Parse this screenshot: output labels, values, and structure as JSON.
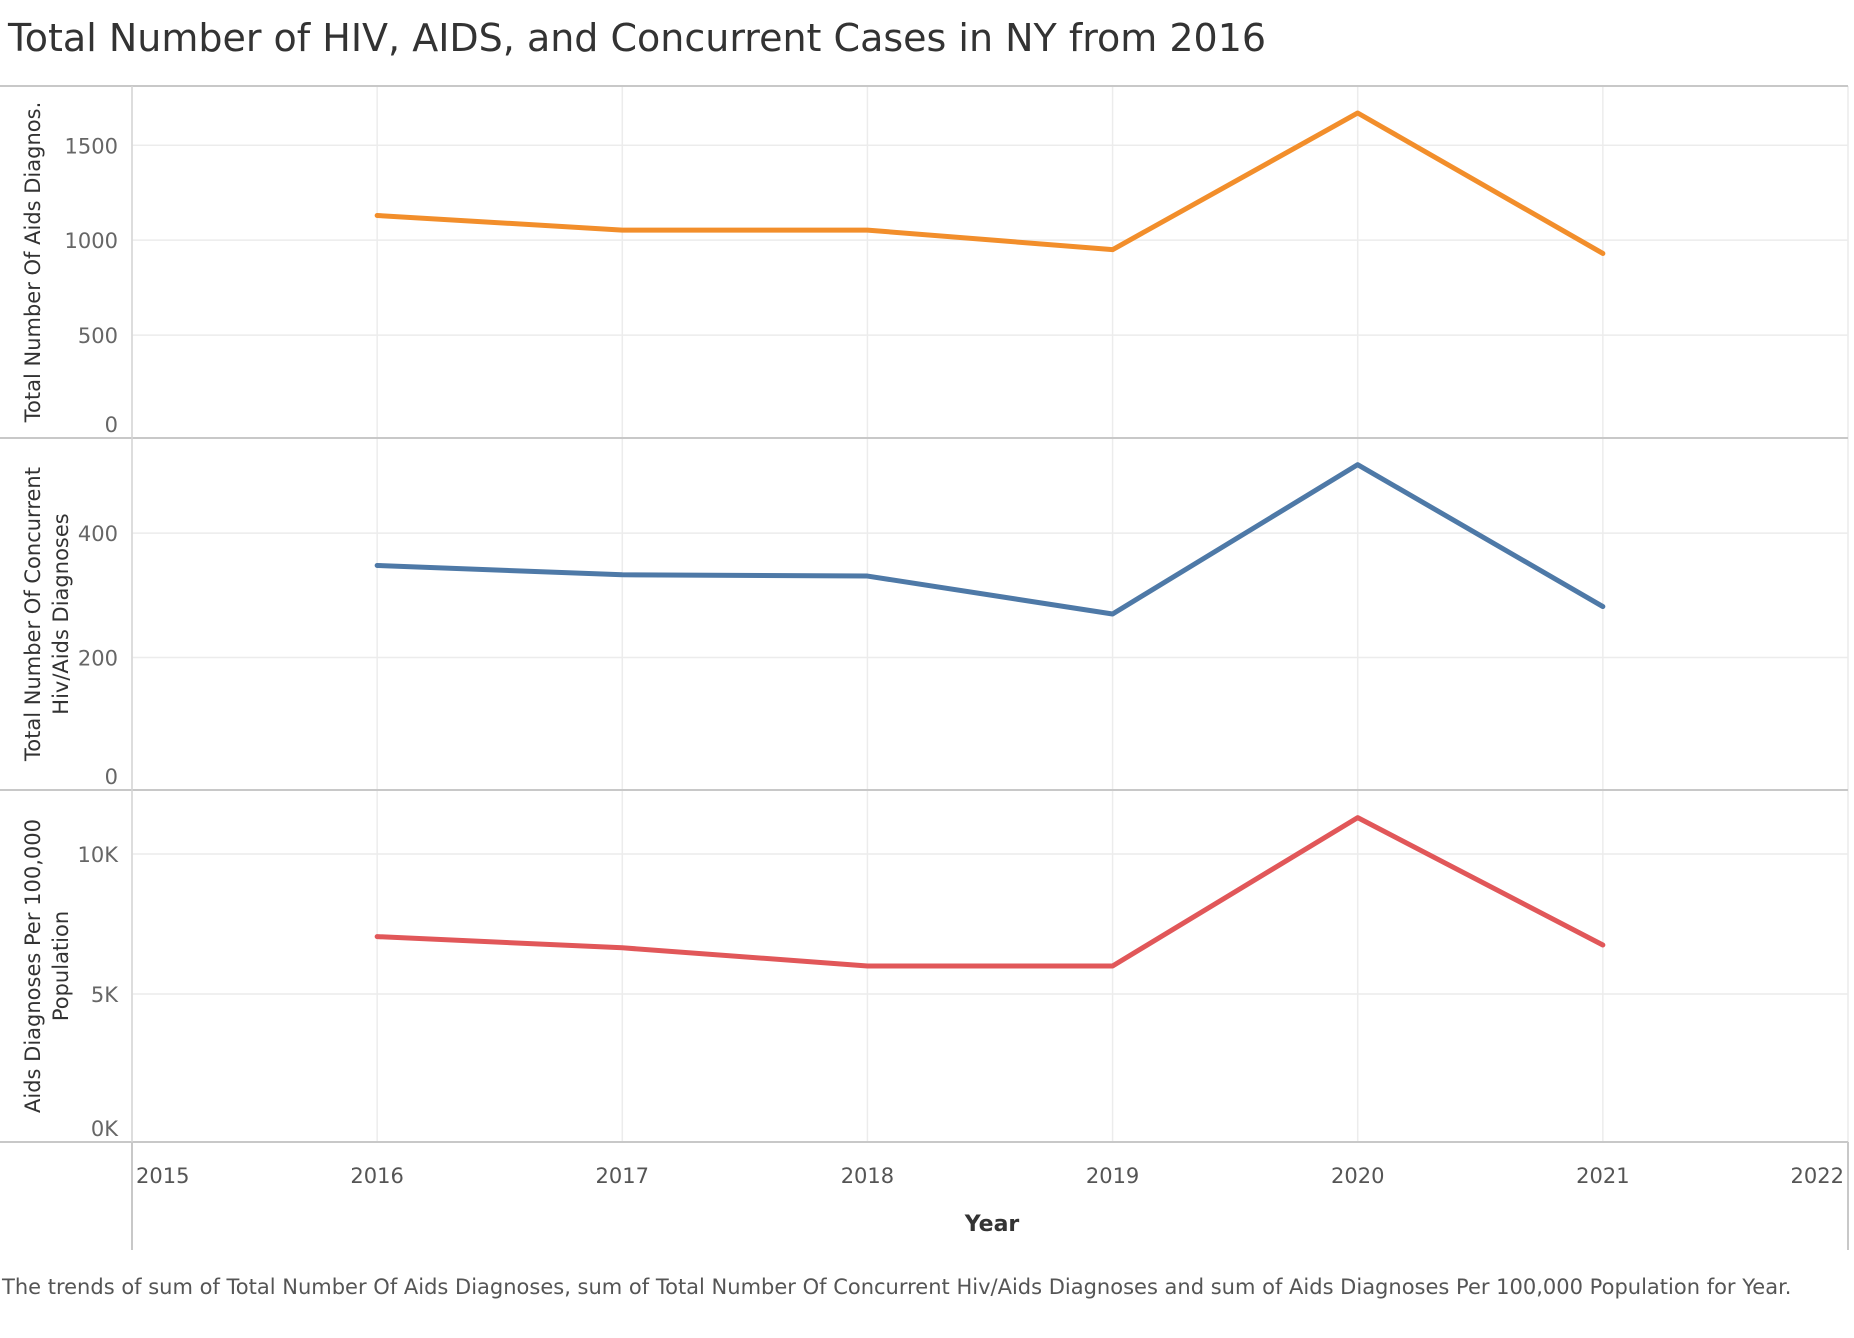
{
  "title": "Total Number of HIV, AIDS, and Concurrent Cases in NY from 2016",
  "caption": "The trends of sum of Total Number Of Aids Diagnoses, sum of Total Number Of Concurrent Hiv/Aids Diagnoses and sum of Aids Diagnoses Per 100,000 Population for Year.",
  "chart_data": {
    "type": "line",
    "xlabel": "Year",
    "x_ticks": [
      "2015",
      "2016",
      "2017",
      "2018",
      "2019",
      "2020",
      "2021",
      "2022"
    ],
    "xlim": [
      2015,
      2022
    ],
    "grid": true,
    "panels": [
      {
        "ylabel": [
          "Total Number Of Aids Diagnos."
        ],
        "y_ticks": [
          0,
          500,
          1000,
          1500
        ],
        "y_tick_labels": [
          "0",
          "500",
          "1000",
          "1500"
        ],
        "ylim": [
          0,
          1770
        ],
        "color": "#F28E2B",
        "x": [
          2016,
          2017,
          2018,
          2019,
          2020,
          2021
        ],
        "values": [
          1130,
          1053,
          1053,
          950,
          1670,
          930
        ]
      },
      {
        "ylabel": [
          "Total Number Of Concurrent",
          "Hiv/Aids Diagnoses"
        ],
        "y_ticks": [
          0,
          200,
          400
        ],
        "y_tick_labels": [
          "0",
          "200",
          "400"
        ],
        "ylim": [
          0,
          540
        ],
        "color": "#4E79A7",
        "x": [
          2016,
          2017,
          2018,
          2019,
          2020,
          2021
        ],
        "values": [
          348,
          333,
          331,
          270,
          510,
          282
        ]
      },
      {
        "ylabel": [
          "Aids Diagnoses Per 100,000",
          "Population"
        ],
        "y_ticks": [
          0,
          5000,
          10000
        ],
        "y_tick_labels": [
          "0K",
          "5K",
          "10K"
        ],
        "ylim": [
          0,
          12000
        ],
        "color": "#E15759",
        "x": [
          2016,
          2017,
          2018,
          2019,
          2020,
          2021
        ],
        "values": [
          7050,
          6650,
          6000,
          6000,
          11300,
          6750
        ]
      }
    ]
  }
}
